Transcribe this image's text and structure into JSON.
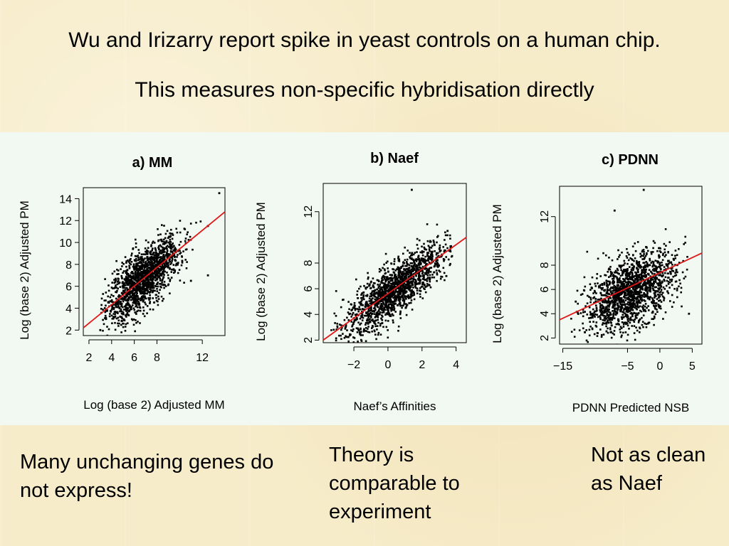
{
  "slide": {
    "title_line1": "Wu and Irizarry report spike in yeast controls on a human chip.",
    "title_line2": "This measures non-specific hybridisation directly"
  },
  "captions": {
    "left": "Many unchanging genes do not express!",
    "middle": "Theory is comparable to experiment",
    "right": "Not as clean as Naef"
  },
  "colors": {
    "point": "#000000",
    "fit_line": "#e01818",
    "panel_bg": "#f2f8f2"
  },
  "chart_data": [
    {
      "type": "scatter",
      "title": "a) MM",
      "xlabel": "Log (base 2) Adjusted MM",
      "ylabel": "Log (base 2) Adjusted PM",
      "xlim": [
        1.5,
        14
      ],
      "ylim": [
        1.5,
        15
      ],
      "xticks": [
        "2",
        "4",
        "6",
        "8",
        "12"
      ],
      "xtick_values": [
        2,
        4,
        6,
        8,
        12
      ],
      "yticks": [
        "2",
        "4",
        "6",
        "8",
        "10",
        "12",
        "14"
      ],
      "ytick_values": [
        2,
        4,
        6,
        8,
        10,
        12,
        14
      ],
      "fit_line": {
        "x": [
          1.5,
          14
        ],
        "y": [
          2.2,
          12.8
        ]
      },
      "cloud": {
        "x_center": 6.8,
        "y_center": 6.6,
        "x_spread": 1.6,
        "y_spread": 1.3,
        "x_range": [
          3,
          12
        ],
        "n_points": 1600
      },
      "outliers": [
        [
          13.5,
          14.5
        ],
        [
          12.5,
          11.5
        ],
        [
          12.5,
          7.0
        ],
        [
          11.0,
          6.5
        ],
        [
          3.0,
          2.0
        ]
      ]
    },
    {
      "type": "scatter",
      "title": "b) Naef",
      "xlabel": "Naef’s Affinities",
      "ylabel": "Log (base 2) Adjusted PM",
      "xlim": [
        -3.8,
        4.6
      ],
      "ylim": [
        1.8,
        14.2
      ],
      "xticks": [
        "−2",
        "0",
        "2",
        "4"
      ],
      "xtick_values": [
        -2,
        0,
        2,
        4
      ],
      "yticks": [
        "2",
        "4",
        "6",
        "8",
        "12"
      ],
      "ytick_values": [
        2,
        4,
        6,
        8,
        12
      ],
      "fit_line": {
        "x": [
          -3.8,
          4.6
        ],
        "y": [
          2.0,
          10.0
        ]
      },
      "cloud": {
        "x_center": 0.5,
        "y_center": 6.0,
        "x_spread": 1.5,
        "y_spread": 1.0,
        "x_range": [
          -3.5,
          3.8
        ],
        "n_points": 1600
      },
      "outliers": [
        [
          1.4,
          13.7
        ],
        [
          -2.0,
          4.5
        ],
        [
          3.5,
          10.5
        ]
      ]
    },
    {
      "type": "scatter",
      "title": "c) PDNN",
      "xlabel": "PDNN Predicted NSB",
      "ylabel": "Log (base 2) Adjusted PM",
      "xlim": [
        -15.5,
        6.5
      ],
      "ylim": [
        1.5,
        14.5
      ],
      "xticks": [
        "−15",
        "−5",
        "0",
        "5"
      ],
      "xtick_values": [
        -15,
        -5,
        0,
        5
      ],
      "yticks": [
        "2",
        "4",
        "6",
        "8",
        "12"
      ],
      "ytick_values": [
        2,
        4,
        6,
        8,
        12
      ],
      "fit_line": {
        "x": [
          -15.5,
          6.5
        ],
        "y": [
          3.5,
          9.0
        ]
      },
      "cloud": {
        "x_center": -4.5,
        "y_center": 5.8,
        "x_spread": 3.4,
        "y_spread": 1.4,
        "x_range": [
          -14,
          4.5
        ],
        "n_points": 1600
      },
      "outliers": [
        [
          -2.5,
          14.2
        ],
        [
          -7.0,
          12.5
        ],
        [
          -13.0,
          5.0
        ],
        [
          4.5,
          4.0
        ]
      ]
    }
  ]
}
